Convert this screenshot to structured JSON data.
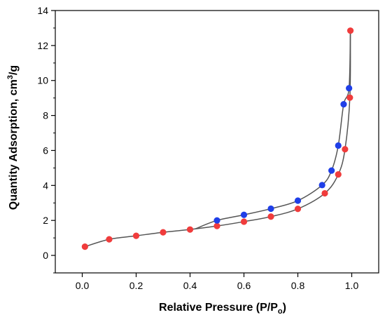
{
  "chart_data": {
    "type": "scatter",
    "xlabel": "Relative Pressure (P/P",
    "xlabel_sub": "o",
    "xlabel_end": ")",
    "ylabel": "Quantity Adsorption, cm",
    "ylabel_sup": "3",
    "ylabel_end": "/g",
    "xlim": [
      -0.1,
      1.1
    ],
    "ylim": [
      -1,
      14
    ],
    "x_ticks": [
      0.0,
      0.2,
      0.4,
      0.6,
      0.8,
      1.0
    ],
    "x_tick_labels": [
      "0.0",
      "0.2",
      "0.4",
      "0.6",
      "0.8",
      "1.0"
    ],
    "y_ticks": [
      0,
      2,
      4,
      6,
      8,
      10,
      12,
      14
    ],
    "y_tick_labels": [
      "0",
      "2",
      "4",
      "6",
      "8",
      "10",
      "12",
      "14"
    ],
    "grid": false,
    "legend": false,
    "series": [
      {
        "color": "#f03c3c",
        "x": [
          0.01,
          0.1,
          0.2,
          0.3,
          0.4,
          0.5,
          0.6,
          0.7,
          0.8,
          0.9,
          0.95,
          0.975,
          0.993,
          0.995
        ],
        "y": [
          0.5,
          0.92,
          1.12,
          1.32,
          1.48,
          1.68,
          1.93,
          2.22,
          2.66,
          3.55,
          4.63,
          6.07,
          9.02,
          12.85
        ]
      },
      {
        "color": "#1f3fe8",
        "x": [
          0.5,
          0.6,
          0.7,
          0.8,
          0.89,
          0.925,
          0.95,
          0.97,
          0.99
        ],
        "y": [
          2.0,
          2.32,
          2.67,
          3.13,
          4.02,
          4.85,
          6.28,
          8.64,
          9.56
        ]
      }
    ]
  }
}
